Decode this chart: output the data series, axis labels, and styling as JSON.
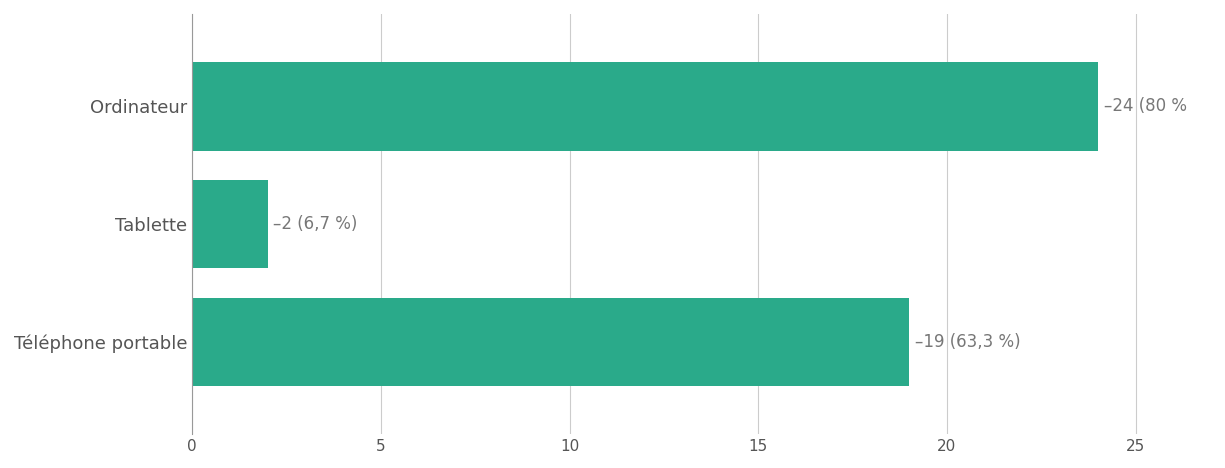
{
  "categories": [
    "Téléphone portable",
    "Tablette",
    "Ordinateur"
  ],
  "values": [
    19,
    2,
    24
  ],
  "labels": [
    "–19 (63,3 %)",
    "–2 (6,7 %)",
    "–24 (80 %"
  ],
  "bar_color": "#2aaa8a",
  "background_color": "#ffffff",
  "grid_color": "#cccccc",
  "text_color": "#555555",
  "label_text_color": "#777777",
  "xlim": [
    0,
    27
  ],
  "xticks": [
    0,
    5,
    10,
    15,
    20,
    25
  ],
  "bar_height": 0.75,
  "label_fontsize": 12,
  "tick_fontsize": 11,
  "ylabel_fontsize": 13,
  "ylabel_fontweight": "bold"
}
